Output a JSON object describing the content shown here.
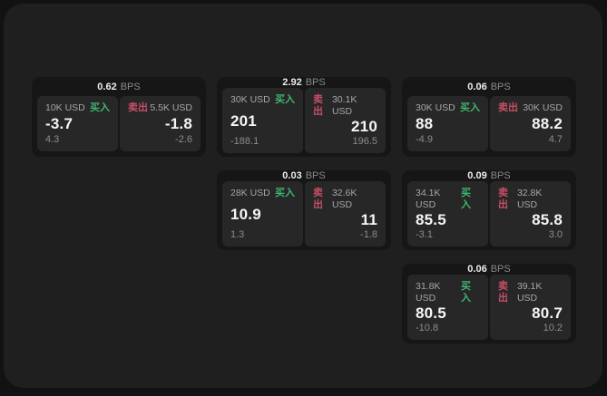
{
  "labels": {
    "bps_suffix": "BPS",
    "buy": "买入",
    "sell": "卖出"
  },
  "colors": {
    "buy": "#3fb56f",
    "sell": "#c64f66",
    "surface": "#1f1f1f",
    "card": "#161616",
    "panel": "#272727"
  },
  "cards": [
    {
      "col": 1,
      "row": 1,
      "bps": "0.62",
      "buy": {
        "size": "10K USD",
        "price": "-3.7",
        "delta": "4.3"
      },
      "sell": {
        "size": "5.5K USD",
        "price": "-1.8",
        "delta": "-2.6"
      }
    },
    {
      "col": 2,
      "row": 1,
      "bps": "2.92",
      "buy": {
        "size": "30K USD",
        "price": "201",
        "delta": "-188.1"
      },
      "sell": {
        "size": "30.1K USD",
        "price": "210",
        "delta": "196.5"
      }
    },
    {
      "col": 3,
      "row": 1,
      "bps": "0.06",
      "buy": {
        "size": "30K USD",
        "price": "88",
        "delta": "-4.9"
      },
      "sell": {
        "size": "30K USD",
        "price": "88.2",
        "delta": "4.7"
      }
    },
    {
      "col": 2,
      "row": 2,
      "bps": "0.03",
      "buy": {
        "size": "28K USD",
        "price": "10.9",
        "delta": "1.3"
      },
      "sell": {
        "size": "32.6K USD",
        "price": "11",
        "delta": "-1.8"
      }
    },
    {
      "col": 3,
      "row": 2,
      "bps": "0.09",
      "buy": {
        "size": "34.1K USD",
        "price": "85.5",
        "delta": "-3.1"
      },
      "sell": {
        "size": "32.8K USD",
        "price": "85.8",
        "delta": "3.0"
      }
    },
    {
      "col": 3,
      "row": 3,
      "bps": "0.06",
      "buy": {
        "size": "31.8K USD",
        "price": "80.5",
        "delta": "-10.8"
      },
      "sell": {
        "size": "39.1K USD",
        "price": "80.7",
        "delta": "10.2"
      }
    }
  ]
}
